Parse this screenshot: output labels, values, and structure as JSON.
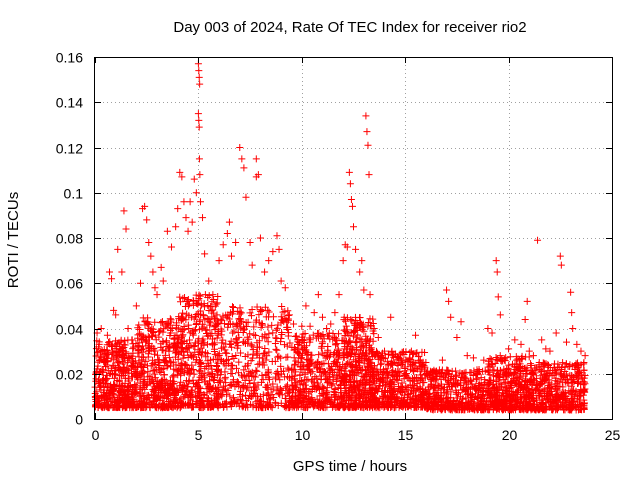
{
  "chart_data": {
    "type": "scatter",
    "title": "Day 003 of 2024, Rate Of TEC Index for receiver rio2",
    "xlabel": "GPS time / hours",
    "ylabel": "ROTI / TECUs",
    "xlim": [
      0,
      25
    ],
    "ylim": [
      0,
      0.16
    ],
    "xticks": [
      0,
      5,
      10,
      15,
      20,
      25
    ],
    "yticks": [
      0,
      0.02,
      0.04,
      0.06,
      0.08,
      0.1,
      0.12,
      0.14,
      0.16
    ],
    "xtick_labels": [
      "0",
      "5",
      "10",
      "15",
      "20",
      "25"
    ],
    "ytick_labels": [
      "0",
      "0.02",
      "0.04",
      "0.06",
      "0.08",
      "0.1",
      "0.12",
      "0.14",
      "0.16"
    ],
    "grid": true,
    "marker": "plus",
    "color": "#ff0000",
    "points": [
      [
        0.1,
        0.038
      ],
      [
        0.2,
        0.033
      ],
      [
        0.3,
        0.04
      ],
      [
        0.5,
        0.029
      ],
      [
        0.6,
        0.037
      ],
      [
        0.7,
        0.065
      ],
      [
        0.8,
        0.062
      ],
      [
        0.9,
        0.048
      ],
      [
        1.0,
        0.046
      ],
      [
        1.1,
        0.075
      ],
      [
        1.3,
        0.065
      ],
      [
        1.4,
        0.092
      ],
      [
        1.5,
        0.084
      ],
      [
        1.6,
        0.04
      ],
      [
        1.8,
        0.035
      ],
      [
        2.0,
        0.05
      ],
      [
        2.2,
        0.06
      ],
      [
        2.3,
        0.093
      ],
      [
        2.4,
        0.094
      ],
      [
        2.5,
        0.088
      ],
      [
        2.6,
        0.078
      ],
      [
        2.7,
        0.072
      ],
      [
        2.8,
        0.065
      ],
      [
        2.9,
        0.058
      ],
      [
        3.0,
        0.055
      ],
      [
        3.2,
        0.067
      ],
      [
        3.3,
        0.061
      ],
      [
        3.5,
        0.083
      ],
      [
        3.7,
        0.076
      ],
      [
        3.9,
        0.085
      ],
      [
        4.0,
        0.093
      ],
      [
        4.1,
        0.109
      ],
      [
        4.2,
        0.107
      ],
      [
        4.3,
        0.096
      ],
      [
        4.4,
        0.089
      ],
      [
        4.5,
        0.083
      ],
      [
        4.6,
        0.096
      ],
      [
        4.7,
        0.087
      ],
      [
        4.8,
        0.106
      ],
      [
        4.9,
        0.1
      ],
      [
        5.0,
        0.157
      ],
      [
        5.02,
        0.154
      ],
      [
        5.04,
        0.151
      ],
      [
        5.06,
        0.148
      ],
      [
        5.0,
        0.135
      ],
      [
        5.02,
        0.132
      ],
      [
        5.04,
        0.129
      ],
      [
        5.05,
        0.115
      ],
      [
        5.07,
        0.108
      ],
      [
        5.1,
        0.096
      ],
      [
        5.2,
        0.089
      ],
      [
        5.3,
        0.073
      ],
      [
        5.5,
        0.061
      ],
      [
        5.7,
        0.055
      ],
      [
        5.9,
        0.046
      ],
      [
        6.0,
        0.07
      ],
      [
        6.2,
        0.077
      ],
      [
        6.4,
        0.082
      ],
      [
        6.5,
        0.087
      ],
      [
        6.6,
        0.072
      ],
      [
        6.8,
        0.078
      ],
      [
        7.0,
        0.12
      ],
      [
        7.1,
        0.115
      ],
      [
        7.2,
        0.111
      ],
      [
        7.3,
        0.098
      ],
      [
        7.5,
        0.078
      ],
      [
        7.6,
        0.068
      ],
      [
        7.8,
        0.107
      ],
      [
        7.9,
        0.108
      ],
      [
        7.8,
        0.115
      ],
      [
        8.0,
        0.08
      ],
      [
        8.2,
        0.065
      ],
      [
        8.4,
        0.07
      ],
      [
        8.6,
        0.074
      ],
      [
        8.8,
        0.081
      ],
      [
        8.9,
        0.075
      ],
      [
        9.0,
        0.061
      ],
      [
        9.2,
        0.058
      ],
      [
        9.4,
        0.046
      ],
      [
        9.6,
        0.042
      ],
      [
        9.8,
        0.035
      ],
      [
        10.0,
        0.041
      ],
      [
        10.2,
        0.05
      ],
      [
        10.4,
        0.041
      ],
      [
        10.6,
        0.047
      ],
      [
        10.8,
        0.055
      ],
      [
        11.0,
        0.045
      ],
      [
        11.2,
        0.04
      ],
      [
        11.4,
        0.042
      ],
      [
        11.6,
        0.047
      ],
      [
        11.8,
        0.055
      ],
      [
        12.0,
        0.07
      ],
      [
        12.1,
        0.077
      ],
      [
        12.2,
        0.076
      ],
      [
        12.3,
        0.109
      ],
      [
        12.35,
        0.104
      ],
      [
        12.4,
        0.097
      ],
      [
        12.45,
        0.094
      ],
      [
        12.5,
        0.085
      ],
      [
        12.6,
        0.075
      ],
      [
        12.8,
        0.065
      ],
      [
        12.9,
        0.07
      ],
      [
        13.0,
        0.057
      ],
      [
        13.1,
        0.134
      ],
      [
        13.15,
        0.127
      ],
      [
        13.2,
        0.121
      ],
      [
        13.25,
        0.108
      ],
      [
        13.3,
        0.055
      ],
      [
        13.5,
        0.04
      ],
      [
        13.7,
        0.036
      ],
      [
        14.0,
        0.03
      ],
      [
        14.3,
        0.045
      ],
      [
        14.5,
        0.025
      ],
      [
        14.8,
        0.024
      ],
      [
        15.0,
        0.023
      ],
      [
        15.3,
        0.03
      ],
      [
        15.5,
        0.037
      ],
      [
        15.8,
        0.022
      ],
      [
        16.0,
        0.025
      ],
      [
        16.3,
        0.021
      ],
      [
        16.5,
        0.02
      ],
      [
        16.8,
        0.026
      ],
      [
        17.0,
        0.057
      ],
      [
        17.1,
        0.052
      ],
      [
        17.2,
        0.045
      ],
      [
        17.5,
        0.036
      ],
      [
        17.7,
        0.043
      ],
      [
        18.0,
        0.028
      ],
      [
        18.3,
        0.027
      ],
      [
        18.5,
        0.02
      ],
      [
        18.8,
        0.026
      ],
      [
        19.0,
        0.04
      ],
      [
        19.2,
        0.038
      ],
      [
        19.4,
        0.07
      ],
      [
        19.45,
        0.065
      ],
      [
        19.5,
        0.054
      ],
      [
        19.6,
        0.046
      ],
      [
        19.8,
        0.026
      ],
      [
        20.0,
        0.031
      ],
      [
        20.3,
        0.035
      ],
      [
        20.6,
        0.033
      ],
      [
        20.8,
        0.044
      ],
      [
        20.9,
        0.052
      ],
      [
        21.0,
        0.03
      ],
      [
        21.2,
        0.028
      ],
      [
        21.4,
        0.079
      ],
      [
        21.6,
        0.035
      ],
      [
        21.8,
        0.031
      ],
      [
        22.0,
        0.03
      ],
      [
        22.3,
        0.038
      ],
      [
        22.5,
        0.072
      ],
      [
        22.55,
        0.068
      ],
      [
        22.8,
        0.034
      ],
      [
        23.0,
        0.056
      ],
      [
        23.05,
        0.047
      ],
      [
        23.1,
        0.04
      ],
      [
        23.3,
        0.033
      ],
      [
        23.5,
        0.03
      ],
      [
        23.7,
        0.028
      ]
    ],
    "dense_band": {
      "description_hidden": false,
      "segments": [
        [
          0.0,
          2.0,
          0.005,
          0.035
        ],
        [
          2.0,
          4.0,
          0.005,
          0.045
        ],
        [
          4.0,
          6.0,
          0.005,
          0.055
        ],
        [
          6.0,
          9.5,
          0.005,
          0.05
        ],
        [
          9.5,
          12.0,
          0.005,
          0.038
        ],
        [
          12.0,
          13.5,
          0.005,
          0.045
        ],
        [
          13.5,
          16.0,
          0.005,
          0.03
        ],
        [
          16.0,
          19.0,
          0.004,
          0.022
        ],
        [
          19.0,
          21.0,
          0.004,
          0.028
        ],
        [
          21.0,
          23.7,
          0.004,
          0.025
        ]
      ],
      "count": 4200
    }
  }
}
